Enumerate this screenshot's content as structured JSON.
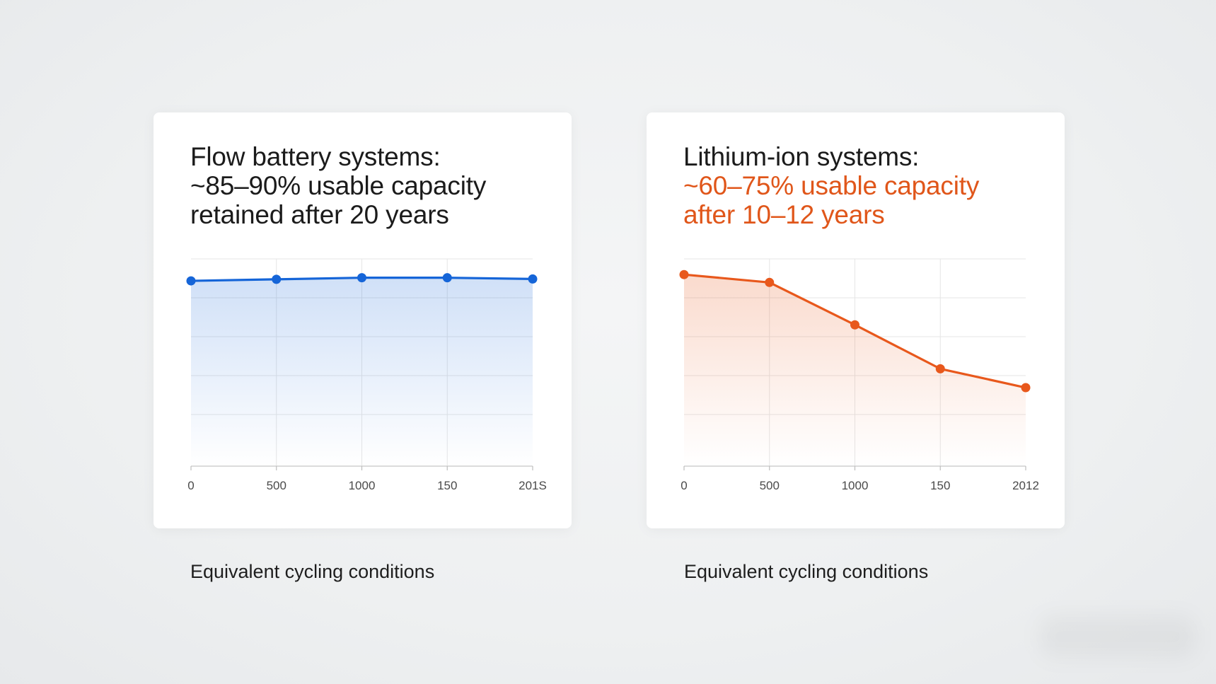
{
  "panels": [
    {
      "title_lines": [
        "Flow battery systems:",
        "~85–90% usable capacity",
        "retained after 20 years"
      ],
      "caption": "Equivalent cycling conditions"
    },
    {
      "title_lines": [
        "Lithium-ion systems:",
        "~60–75% usable capacity",
        "after 10–12 years"
      ],
      "caption": "Equivalent cycling conditions"
    }
  ],
  "chart_data": [
    {
      "type": "line",
      "title": "Flow battery systems: ~85–90% usable capacity retained after 20 years",
      "xlabel": "",
      "ylabel": "",
      "categories": [
        "0",
        "500",
        "1000",
        "150",
        "201S"
      ],
      "series": [
        {
          "values": [
            89,
            89.5,
            90,
            90,
            89.6
          ],
          "color": "#1565d8",
          "fill": "area"
        }
      ],
      "ylim": [
        30,
        96
      ],
      "grid": true,
      "area_fill": true
    },
    {
      "type": "line",
      "title": "Lithium-ion systems: ~60–75% usable capacity after 10–12 years",
      "xlabel": "",
      "ylabel": "",
      "categories": [
        "0",
        "500",
        "1000",
        "150",
        "2012"
      ],
      "series": [
        {
          "values": [
            91,
            88.5,
            75,
            61,
            55
          ],
          "color": "#e8581c",
          "fill": "area"
        }
      ],
      "ylim": [
        30,
        96
      ],
      "grid": true,
      "area_fill": true
    }
  ]
}
